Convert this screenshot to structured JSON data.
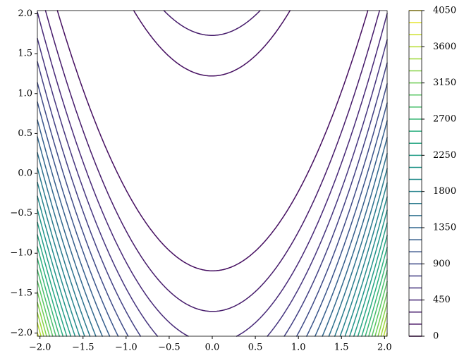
{
  "chart_data": {
    "type": "contour",
    "colormap": "viridis",
    "xlim": [
      -2.03,
      2.03
    ],
    "ylim": [
      -2.04,
      2.04
    ],
    "xticks": [
      {
        "value": -2,
        "label": "−2.0"
      },
      {
        "value": -1.5,
        "label": "−1.5"
      },
      {
        "value": -1,
        "label": "−1.0"
      },
      {
        "value": -0.5,
        "label": "−0.5"
      },
      {
        "value": 0,
        "label": "0.0"
      },
      {
        "value": 0.5,
        "label": "0.5"
      },
      {
        "value": 1,
        "label": "1.0"
      },
      {
        "value": 1.5,
        "label": "1.5"
      },
      {
        "value": 2,
        "label": "2.0"
      }
    ],
    "yticks": [
      {
        "value": -2,
        "label": "−2.0"
      },
      {
        "value": -1.5,
        "label": "−1.5"
      },
      {
        "value": -1,
        "label": "−1.0"
      },
      {
        "value": -0.5,
        "label": "−0.5"
      },
      {
        "value": 0,
        "label": "0.0"
      },
      {
        "value": 0.5,
        "label": "0.5"
      },
      {
        "value": 1,
        "label": "1.0"
      },
      {
        "value": 1.5,
        "label": "1.5"
      },
      {
        "value": 2,
        "label": "2.0"
      }
    ],
    "levels": [
      0,
      150,
      300,
      450,
      600,
      750,
      900,
      1050,
      1200,
      1350,
      1500,
      1650,
      1800,
      1950,
      2100,
      2250,
      2400,
      2550,
      2700,
      2850,
      3000,
      3150,
      3300,
      3450,
      3600,
      3750,
      3900,
      4050
    ],
    "colorbar_lim": [
      0,
      4050
    ],
    "colorbar_ticks": [
      0,
      450,
      900,
      1350,
      1800,
      2250,
      2700,
      3150,
      3600,
      4050
    ]
  }
}
